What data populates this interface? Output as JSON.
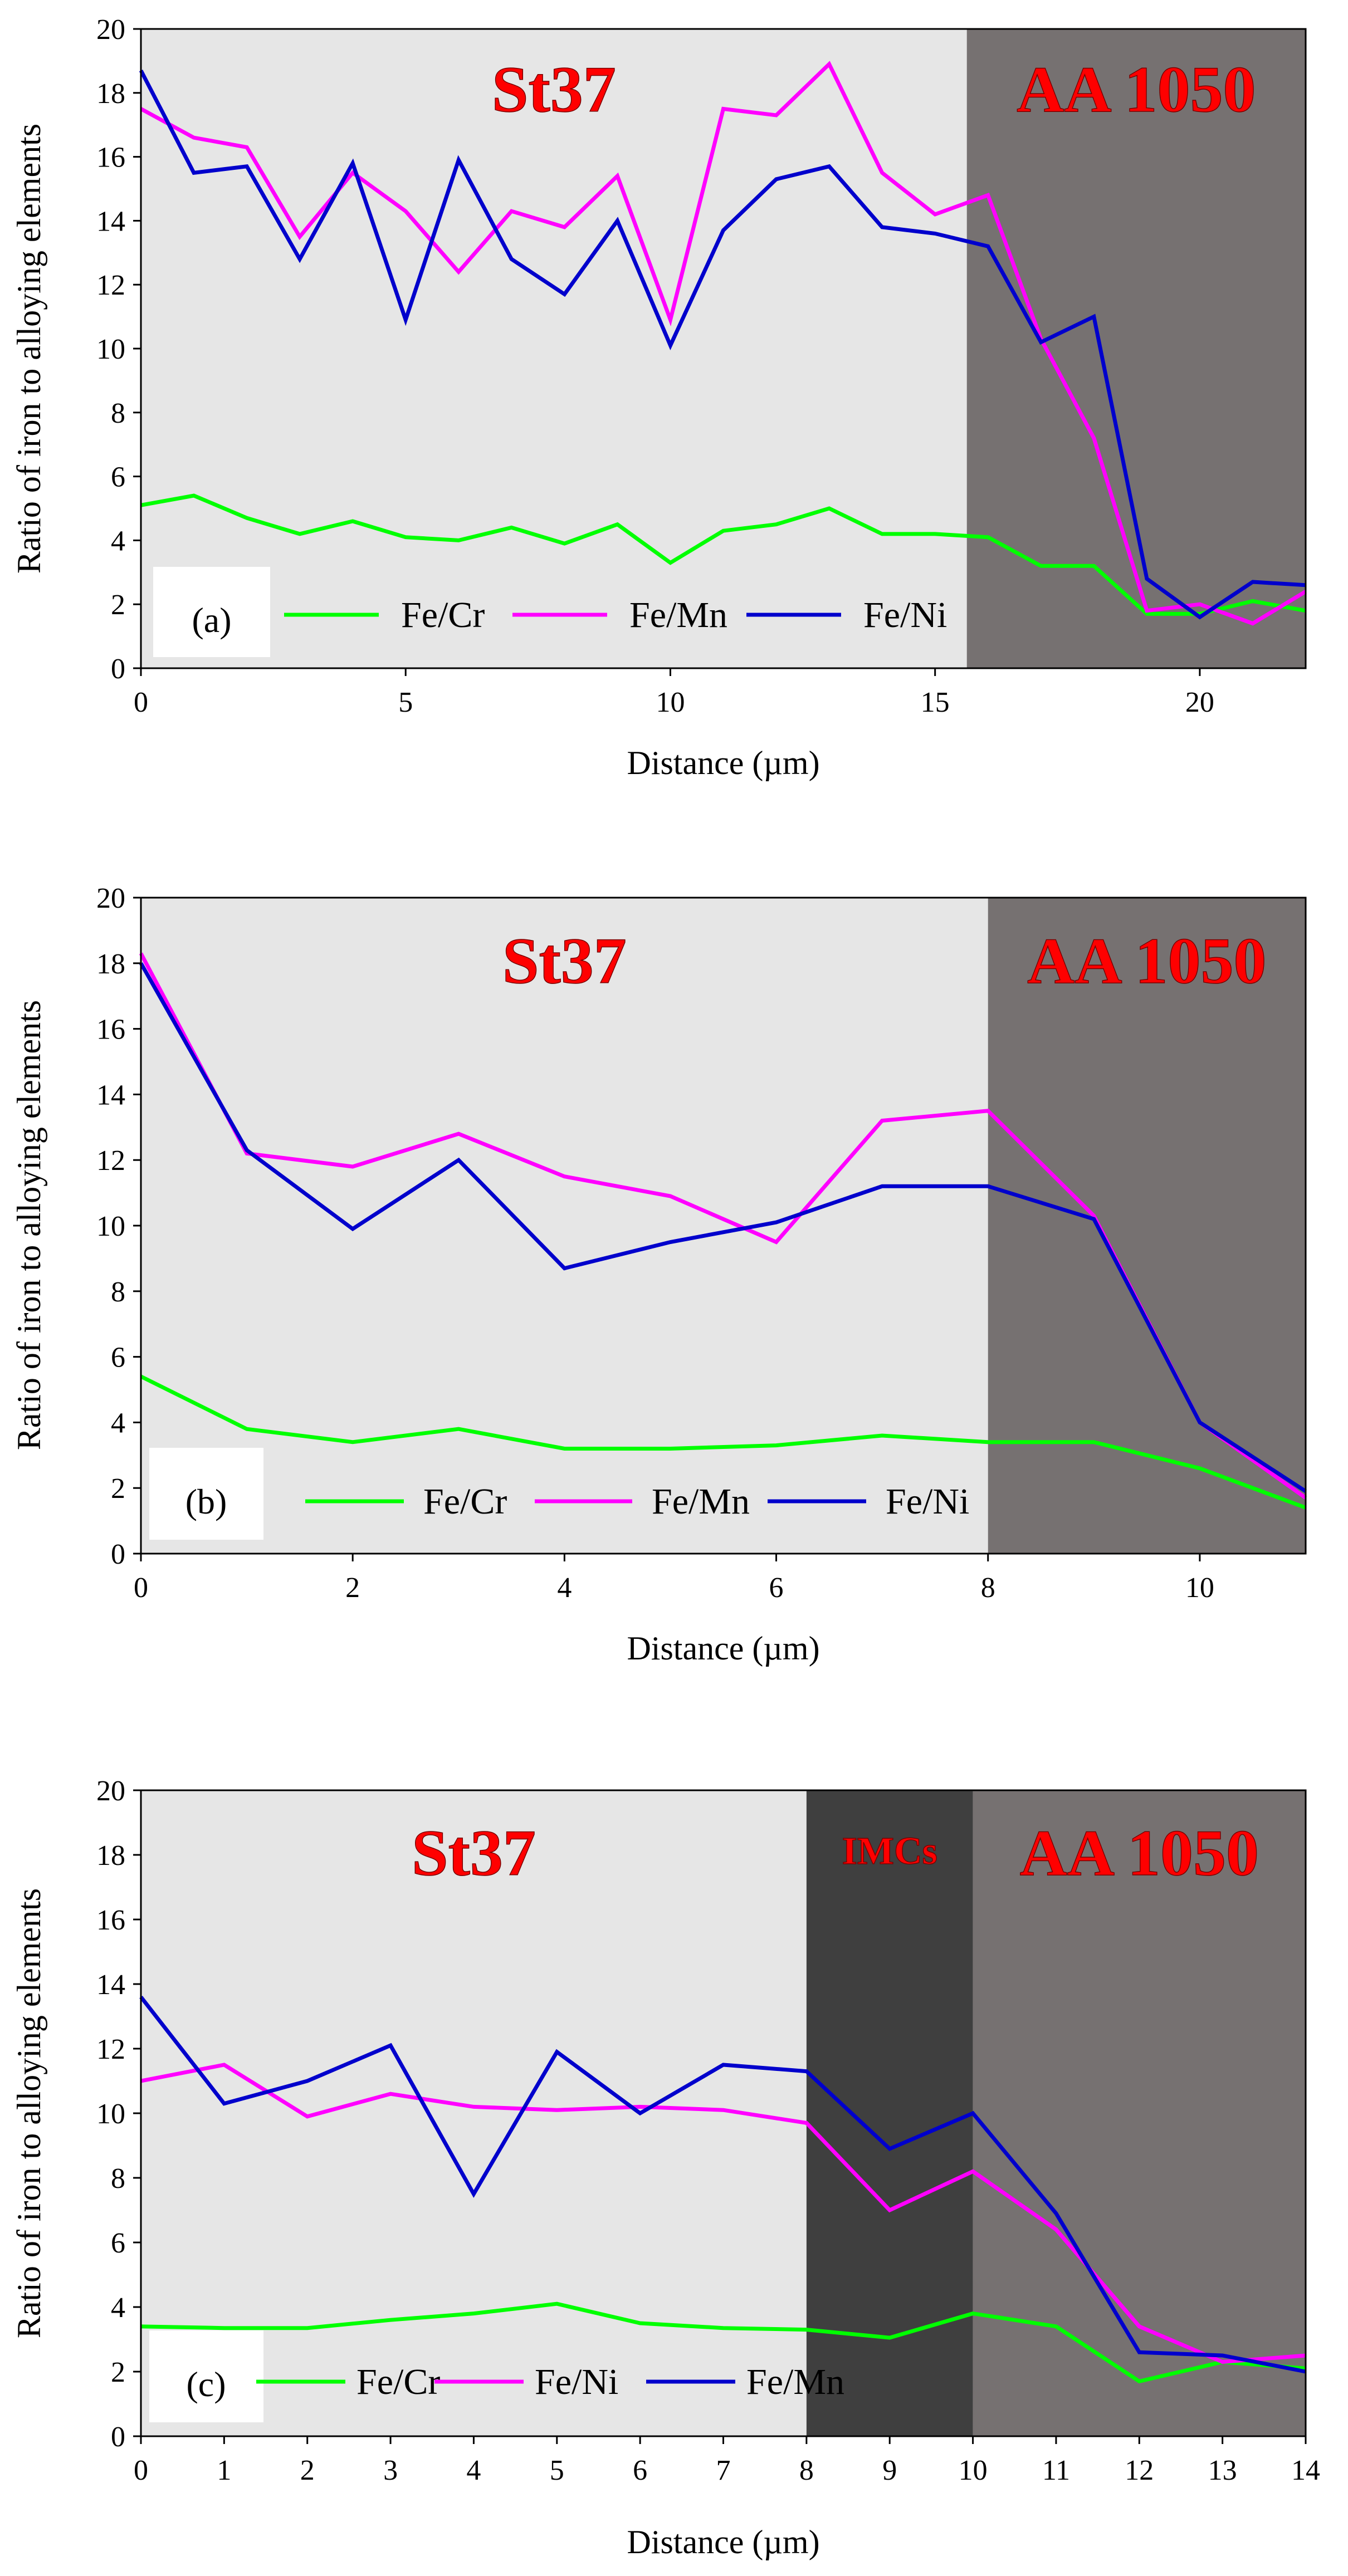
{
  "chart_data": [
    {
      "type": "line",
      "panel_label": "(a)",
      "xlabel": "Distance (µm)",
      "ylabel": "Ratio of iron to alloying elements",
      "xlim": [
        0,
        22
      ],
      "ylim": [
        0,
        20
      ],
      "xticks": [
        0,
        5,
        10,
        15,
        20
      ],
      "yticks": [
        0,
        2,
        4,
        6,
        8,
        10,
        12,
        14,
        16,
        18,
        20
      ],
      "legend_position": "bottom",
      "regions": [
        {
          "label": "St37",
          "x_start": 0,
          "x_end": 15.6,
          "color": "#e6e6e6",
          "text_color": "#ff0000",
          "text_size": "large"
        },
        {
          "label": "AA 1050",
          "x_start": 15.6,
          "x_end": 22,
          "color": "#767171",
          "text_color": "#ff0000",
          "text_size": "large"
        }
      ],
      "x": [
        0,
        1,
        2,
        3,
        4,
        5,
        6,
        7,
        8,
        9,
        10,
        11,
        12,
        13,
        14,
        15,
        16,
        17,
        18,
        19,
        20,
        21,
        22
      ],
      "series": [
        {
          "name": "Fe/Cr",
          "color": "#00ff00",
          "values": [
            5.1,
            5.4,
            4.7,
            4.2,
            4.6,
            4.1,
            4.0,
            4.4,
            3.9,
            4.5,
            3.3,
            4.3,
            4.5,
            5.0,
            4.2,
            4.2,
            4.1,
            3.2,
            3.2,
            1.7,
            1.7,
            2.1,
            1.8
          ]
        },
        {
          "name": "Fe/Mn",
          "color": "#ff00ff",
          "values": [
            17.5,
            16.6,
            16.3,
            13.5,
            15.5,
            14.3,
            12.4,
            14.3,
            13.8,
            15.4,
            10.9,
            17.5,
            17.3,
            18.9,
            15.5,
            14.2,
            14.8,
            10.3,
            7.2,
            1.8,
            2.0,
            1.4,
            2.4
          ]
        },
        {
          "name": "Fe/Ni",
          "color": "#0000cc",
          "values": [
            18.7,
            15.5,
            15.7,
            12.8,
            15.8,
            10.9,
            15.9,
            12.8,
            11.7,
            14.0,
            10.1,
            13.7,
            15.3,
            15.7,
            13.8,
            13.6,
            13.2,
            10.2,
            11.0,
            2.8,
            1.6,
            2.7,
            2.6
          ]
        }
      ]
    },
    {
      "type": "line",
      "panel_label": "(b)",
      "xlabel": "Distance (µm)",
      "ylabel": "Ratio of iron to alloying elements",
      "xlim": [
        0,
        11
      ],
      "ylim": [
        0,
        20
      ],
      "xticks": [
        0,
        2,
        4,
        6,
        8,
        10
      ],
      "yticks": [
        0,
        2,
        4,
        6,
        8,
        10,
        12,
        14,
        16,
        18,
        20
      ],
      "legend_position": "bottom",
      "regions": [
        {
          "label": "St37",
          "x_start": 0,
          "x_end": 8,
          "color": "#e6e6e6",
          "text_color": "#ff0000",
          "text_size": "large"
        },
        {
          "label": "AA 1050",
          "x_start": 8,
          "x_end": 11,
          "color": "#767171",
          "text_color": "#ff0000",
          "text_size": "large"
        }
      ],
      "x": [
        0,
        1,
        2,
        3,
        4,
        5,
        6,
        7,
        8,
        9,
        10,
        11
      ],
      "series": [
        {
          "name": "Fe/Cr",
          "color": "#00ff00",
          "values": [
            5.4,
            3.8,
            3.4,
            3.8,
            3.2,
            3.2,
            3.3,
            3.6,
            3.4,
            3.4,
            2.6,
            1.4
          ]
        },
        {
          "name": "Fe/Mn",
          "color": "#ff00ff",
          "values": [
            18.3,
            12.2,
            11.8,
            12.8,
            11.5,
            10.9,
            9.5,
            13.2,
            13.5,
            10.3,
            4.0,
            1.7
          ]
        },
        {
          "name": "Fe/Ni",
          "color": "#0000cc",
          "values": [
            18.0,
            12.3,
            9.9,
            12.0,
            8.7,
            9.5,
            10.1,
            11.2,
            11.2,
            10.2,
            4.0,
            1.9
          ]
        }
      ]
    },
    {
      "type": "line",
      "panel_label": "(c)",
      "xlabel": "Distance (µm)",
      "ylabel": "Ratio of iron to alloying elements",
      "xlim": [
        0,
        14
      ],
      "ylim": [
        0,
        20
      ],
      "xticks": [
        0,
        1,
        2,
        3,
        4,
        5,
        6,
        7,
        8,
        9,
        10,
        11,
        12,
        13,
        14
      ],
      "yticks": [
        0,
        2,
        4,
        6,
        8,
        10,
        12,
        14,
        16,
        18,
        20
      ],
      "legend_position": "bottom",
      "regions": [
        {
          "label": "St37",
          "x_start": 0,
          "x_end": 8,
          "color": "#e6e6e6",
          "text_color": "#ff0000",
          "text_size": "large"
        },
        {
          "label": "IMCs",
          "x_start": 8,
          "x_end": 10,
          "color": "#3f3f3f",
          "text_color": "#ff0000",
          "text_size": "small"
        },
        {
          "label": "AA 1050",
          "x_start": 10,
          "x_end": 14,
          "color": "#767171",
          "text_color": "#ff0000",
          "text_size": "large"
        }
      ],
      "x": [
        0,
        1,
        2,
        3,
        4,
        5,
        6,
        7,
        8,
        9,
        10,
        11,
        12,
        13,
        14
      ],
      "series": [
        {
          "name": "Fe/Cr",
          "color": "#00ff00",
          "values": [
            3.4,
            3.35,
            3.35,
            3.6,
            3.8,
            4.1,
            3.5,
            3.35,
            3.3,
            3.05,
            3.8,
            3.4,
            1.7,
            2.3,
            2.1
          ]
        },
        {
          "name": "Fe/Ni",
          "color": "#ff00ff",
          "values": [
            11.0,
            11.5,
            9.9,
            10.6,
            10.2,
            10.1,
            10.2,
            10.1,
            9.7,
            7.0,
            8.2,
            6.4,
            3.4,
            2.3,
            2.5
          ]
        },
        {
          "name": "Fe/Mn",
          "color": "#0000cc",
          "values": [
            13.6,
            10.3,
            11.0,
            12.1,
            7.5,
            11.9,
            10.0,
            11.5,
            11.3,
            8.9,
            10.0,
            6.9,
            2.6,
            2.5,
            2.0
          ]
        }
      ]
    }
  ]
}
